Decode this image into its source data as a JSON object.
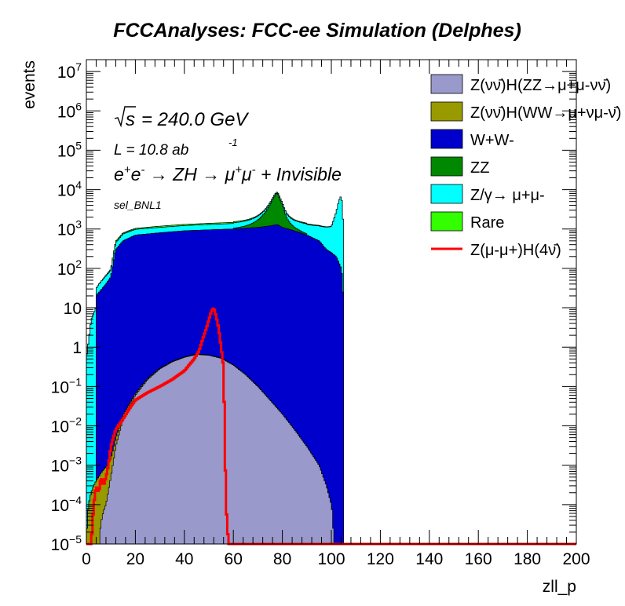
{
  "chart_data": {
    "type": "area",
    "title": "FCCAnalyses: FCC-ee Simulation (Delphes)",
    "xlabel": "zll_p",
    "ylabel": "events",
    "xlim": [
      0,
      200
    ],
    "ylim": [
      1e-05,
      20000000.0
    ],
    "yscale": "log",
    "stacked": true,
    "grid": false,
    "legend_position": "top-right",
    "x_ticks": [
      "0",
      "20",
      "40",
      "60",
      "80",
      "100",
      "120",
      "140",
      "160",
      "180",
      "200"
    ],
    "annotations": {
      "sqrt_s": "= 240.0 GeV",
      "lumi": "L = 10.8 ab",
      "lumi_exp": "-1",
      "process": "e+e- → ZH → μ+μ- + Invisible",
      "selection": "sel_BNL1"
    },
    "series": [
      {
        "name": "Z(νν̄)H(ZZ→μ+μ-νν̄)",
        "color": "#9999cc",
        "x": [
          0,
          3,
          5,
          8,
          10,
          12,
          15,
          20,
          25,
          30,
          35,
          40,
          45,
          50,
          55,
          60,
          65,
          70,
          75,
          80,
          85,
          90,
          95,
          98,
          100,
          101
        ],
        "y": [
          0,
          0,
          0,
          0.0001,
          0.0005,
          0.003,
          0.015,
          0.06,
          0.15,
          0.28,
          0.42,
          0.55,
          0.65,
          0.62,
          0.52,
          0.35,
          0.2,
          0.1,
          0.045,
          0.02,
          0.008,
          0.003,
          0.001,
          0.0003,
          0.0001,
          0
        ]
      },
      {
        "name": "Z(νν̄)H(WW→μ+νμ-ν̄)",
        "color": "#999900",
        "x": [
          0,
          10,
          12,
          15,
          20,
          25,
          30,
          35,
          40,
          45,
          50,
          55,
          60,
          62,
          65,
          70,
          72
        ],
        "y": [
          0,
          0.001,
          0.002,
          0.004,
          0.007,
          0.01,
          0.013,
          0.016,
          0.018,
          0.018,
          0.015,
          0.012,
          0.008,
          0.004,
          0.003,
          0.002,
          0
        ]
      },
      {
        "name": "W+W-",
        "color": "#0000cc",
        "x": [
          4,
          8,
          10,
          12,
          15,
          20,
          30,
          40,
          50,
          60,
          65,
          70,
          75,
          78,
          80,
          85,
          90,
          95,
          98,
          100,
          102,
          104,
          105
        ],
        "y": [
          20,
          40,
          60,
          300,
          500,
          700,
          800,
          900,
          950,
          1000,
          1050,
          1100,
          1200,
          1300,
          1100,
          900,
          700,
          500,
          300,
          250,
          200,
          100,
          0
        ]
      },
      {
        "name": "ZZ",
        "color": "#008800",
        "x": [
          60,
          65,
          70,
          73,
          75,
          77,
          78,
          80,
          82,
          85,
          90
        ],
        "y": [
          50,
          150,
          600,
          1500,
          3000,
          6000,
          7000,
          3000,
          800,
          200,
          50
        ]
      },
      {
        "name": "Z/γ→ μ+μ-",
        "color": "#00ffff",
        "x": [
          0,
          2,
          5,
          8,
          10,
          12,
          15,
          20,
          30,
          40,
          50,
          60,
          70,
          80,
          90,
          95,
          100,
          102,
          103,
          104,
          105
        ],
        "y": [
          0.5,
          5,
          15,
          25,
          30,
          150,
          250,
          280,
          300,
          320,
          350,
          380,
          420,
          500,
          600,
          700,
          900,
          2500,
          5000,
          7000,
          0
        ]
      },
      {
        "name": "Rare",
        "color": "#33ff00",
        "x": [
          0,
          1,
          3,
          5,
          8,
          10,
          11,
          12,
          15,
          20,
          25,
          30,
          40,
          50,
          60,
          70,
          80,
          90,
          95,
          100,
          102,
          104,
          104.5,
          105
        ],
        "y": [
          0.02,
          0.02,
          0.03,
          0.2,
          2,
          5,
          30,
          40,
          50,
          60,
          70,
          80,
          90,
          95,
          95,
          90,
          80,
          60,
          40,
          20,
          5,
          0.2,
          0.05,
          0
        ]
      },
      {
        "name": "Z(μ-μ+)H(4ν̄)",
        "color": "#ff0000",
        "style": "line",
        "x": [
          0,
          2,
          3,
          4,
          5,
          6,
          7,
          8,
          9,
          10,
          11,
          12,
          13,
          15,
          18,
          20,
          25,
          30,
          35,
          40,
          44,
          46,
          48,
          49,
          50,
          51,
          52,
          53,
          54,
          55,
          56,
          57,
          58,
          60,
          80,
          100,
          120,
          140,
          160,
          180,
          200
        ],
        "y": [
          1e-05,
          1e-05,
          0.0001,
          0.0003,
          0.0002,
          0.0005,
          0.0003,
          0.0005,
          0.001,
          0.003,
          0.005,
          0.008,
          0.01,
          0.015,
          0.03,
          0.045,
          0.07,
          0.1,
          0.15,
          0.25,
          0.5,
          0.8,
          2,
          3,
          5,
          8,
          10,
          6,
          3,
          1,
          0.3,
          0.0001,
          1e-05,
          1e-05,
          1e-05,
          1e-05,
          1e-05,
          1e-05,
          1e-05,
          1e-05,
          1e-05
        ]
      }
    ]
  }
}
